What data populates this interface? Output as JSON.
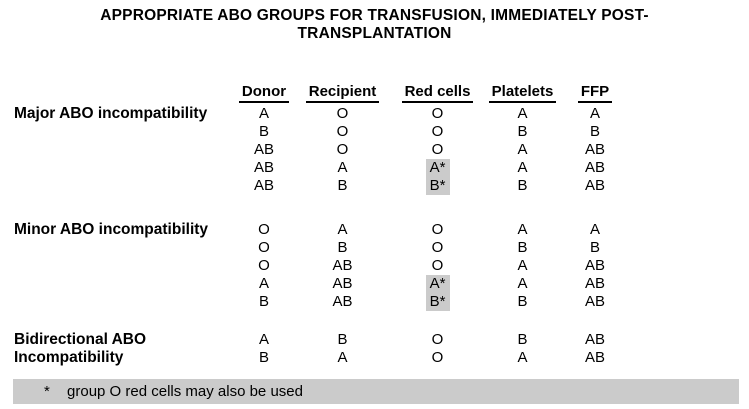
{
  "title": {
    "line1": "APPROPRIATE ABO GROUPS FOR TRANSFUSION, IMMEDIATELY POST-",
    "line2": "TRANSPLANTATION"
  },
  "table": {
    "columns": [
      "Donor",
      "Recipient",
      "Red cells",
      "Platelets",
      "FFP"
    ],
    "sections": [
      {
        "label_lines": [
          "Major ABO incompatibility"
        ],
        "rows": [
          {
            "cells": [
              "A",
              "O",
              "O",
              "A",
              "A"
            ]
          },
          {
            "cells": [
              "B",
              "O",
              "O",
              "B",
              "B"
            ]
          },
          {
            "cells": [
              "AB",
              "O",
              "O",
              "A",
              "AB"
            ]
          },
          {
            "cells": [
              "AB",
              "A",
              "A*",
              "A",
              "AB"
            ],
            "highlight_col": 2
          },
          {
            "cells": [
              "AB",
              "B",
              "B*",
              "B",
              "AB"
            ],
            "highlight_col": 2
          }
        ]
      },
      {
        "label_lines": [
          "Minor ABO incompatibility"
        ],
        "rows": [
          {
            "cells": [
              "O",
              "A",
              "O",
              "A",
              "A"
            ]
          },
          {
            "cells": [
              "O",
              "B",
              "O",
              "B",
              "B"
            ]
          },
          {
            "cells": [
              "O",
              "AB",
              "O",
              "A",
              "AB"
            ]
          },
          {
            "cells": [
              "A",
              "AB",
              "A*",
              "A",
              "AB"
            ],
            "highlight_col": 2
          },
          {
            "cells": [
              "B",
              "AB",
              "B*",
              "B",
              "AB"
            ],
            "highlight_col": 2
          }
        ]
      },
      {
        "label_lines": [
          "Bidirectional ABO",
          "Incompatibility"
        ],
        "rows": [
          {
            "cells": [
              "A",
              "B",
              "O",
              "B",
              "AB"
            ]
          },
          {
            "cells": [
              "B",
              "A",
              "O",
              "A",
              "AB"
            ]
          }
        ]
      }
    ]
  },
  "footnote": {
    "marker": "*",
    "text": "group O red cells may also be used"
  },
  "colors": {
    "highlight": "#cbcbcb",
    "footnote_bar": "#cbcbcb",
    "text": "#000000",
    "background": "#ffffff"
  }
}
